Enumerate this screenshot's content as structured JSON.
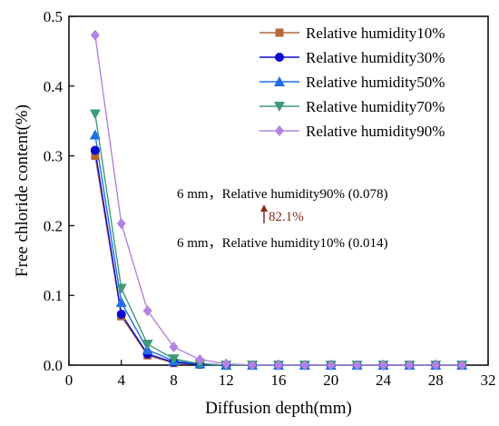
{
  "chart_data": {
    "type": "line",
    "xlabel": "Diffusion depth(mm)",
    "ylabel": "Free chloride content(%)",
    "xlim": [
      0,
      32
    ],
    "ylim": [
      0,
      0.5
    ],
    "xticks": [
      0,
      4,
      8,
      12,
      16,
      20,
      24,
      28,
      32
    ],
    "yticks": [
      0.0,
      0.1,
      0.2,
      0.3,
      0.4,
      0.5
    ],
    "xtick_labels": [
      "0",
      "4",
      "8",
      "12",
      "16",
      "20",
      "24",
      "28",
      "32"
    ],
    "ytick_labels": [
      "0.0",
      "0.1",
      "0.2",
      "0.3",
      "0.4",
      "0.5"
    ],
    "grid": false,
    "legend_position": "top-right",
    "x": [
      2,
      4,
      6,
      8,
      10,
      12,
      14,
      16,
      18,
      20,
      22,
      24,
      26,
      28,
      30
    ],
    "series": [
      {
        "name": "Relative humidity10%",
        "marker": "square",
        "color": "#b5673e",
        "values": [
          0.3,
          0.07,
          0.014,
          0.003,
          0.001,
          0.0,
          0.0,
          0.0,
          0.0,
          0.0,
          0.0,
          0.0,
          0.0,
          0.0,
          0.0
        ]
      },
      {
        "name": "Relative humidity30%",
        "marker": "circle",
        "color": "#0a0ad0",
        "values": [
          0.308,
          0.073,
          0.016,
          0.004,
          0.001,
          0.0,
          0.0,
          0.0,
          0.0,
          0.0,
          0.0,
          0.0,
          0.0,
          0.0,
          0.0
        ]
      },
      {
        "name": "Relative humidity50%",
        "marker": "triangle-up",
        "color": "#1e6fe6",
        "values": [
          0.33,
          0.09,
          0.022,
          0.006,
          0.002,
          0.0,
          0.0,
          0.0,
          0.0,
          0.0,
          0.0,
          0.0,
          0.0,
          0.0,
          0.0
        ]
      },
      {
        "name": "Relative humidity70%",
        "marker": "triangle-down",
        "color": "#3f9a7a",
        "values": [
          0.36,
          0.11,
          0.03,
          0.009,
          0.002,
          0.0,
          0.0,
          0.0,
          0.0,
          0.0,
          0.0,
          0.0,
          0.0,
          0.0,
          0.0
        ]
      },
      {
        "name": "Relative humidity90%",
        "marker": "diamond",
        "color": "#b383e0",
        "values": [
          0.473,
          0.203,
          0.078,
          0.026,
          0.008,
          0.002,
          0.0,
          0.0,
          0.0,
          0.0,
          0.0,
          0.0,
          0.0,
          0.0,
          0.0
        ]
      }
    ],
    "annotations": [
      {
        "text": "6 mm，Relative humidity90% (0.078)"
      },
      {
        "text": "82.1%",
        "color": "#8b2a1a"
      },
      {
        "text": "6 mm，Relative humidity10% (0.014)"
      }
    ]
  }
}
